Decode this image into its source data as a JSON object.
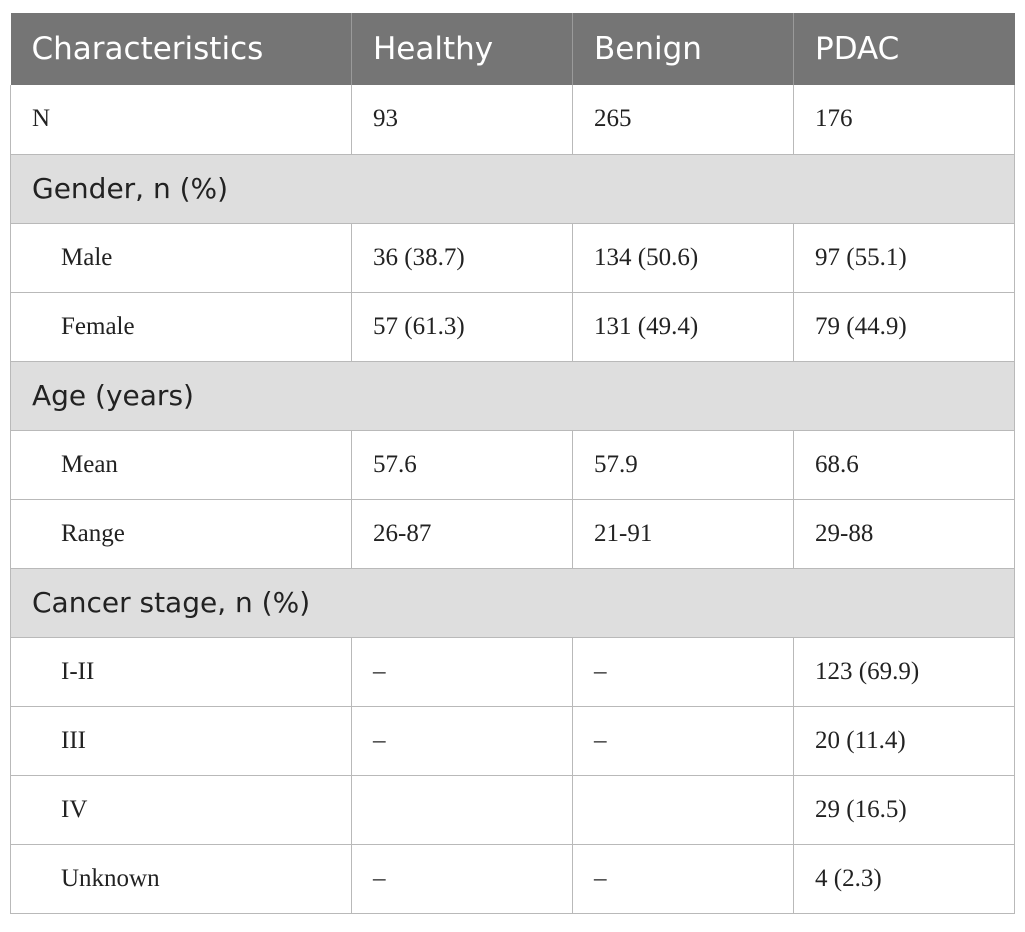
{
  "table": {
    "headers": [
      "Characteristics",
      "Healthy",
      "Benign",
      "PDAC"
    ],
    "rows": [
      {
        "type": "data",
        "label": "N",
        "indent": false,
        "values": [
          "93",
          "265",
          "176"
        ]
      },
      {
        "type": "section",
        "label": "Gender, n (%)"
      },
      {
        "type": "data",
        "label": "Male",
        "indent": true,
        "values": [
          "36 (38.7)",
          "134 (50.6)",
          "97 (55.1)"
        ]
      },
      {
        "type": "data",
        "label": "Female",
        "indent": true,
        "values": [
          "57 (61.3)",
          "131 (49.4)",
          "79 (44.9)"
        ]
      },
      {
        "type": "section",
        "label": "Age (years)"
      },
      {
        "type": "data",
        "label": "Mean",
        "indent": true,
        "values": [
          "57.6",
          "57.9",
          "68.6"
        ]
      },
      {
        "type": "data",
        "label": "Range",
        "indent": true,
        "values": [
          "26-87",
          "21-91",
          "29-88"
        ]
      },
      {
        "type": "section",
        "label": "Cancer stage, n (%)"
      },
      {
        "type": "data",
        "label": "I-II",
        "indent": true,
        "values": [
          "–",
          "–",
          "123 (69.9)"
        ]
      },
      {
        "type": "data",
        "label": "III",
        "indent": true,
        "values": [
          "–",
          "–",
          "20 (11.4)"
        ]
      },
      {
        "type": "data",
        "label": "IV",
        "indent": true,
        "values": [
          "",
          "",
          "29 (16.5)"
        ]
      },
      {
        "type": "data",
        "label": "Unknown",
        "indent": true,
        "values": [
          "–",
          "–",
          "4 (2.3)"
        ]
      }
    ]
  }
}
